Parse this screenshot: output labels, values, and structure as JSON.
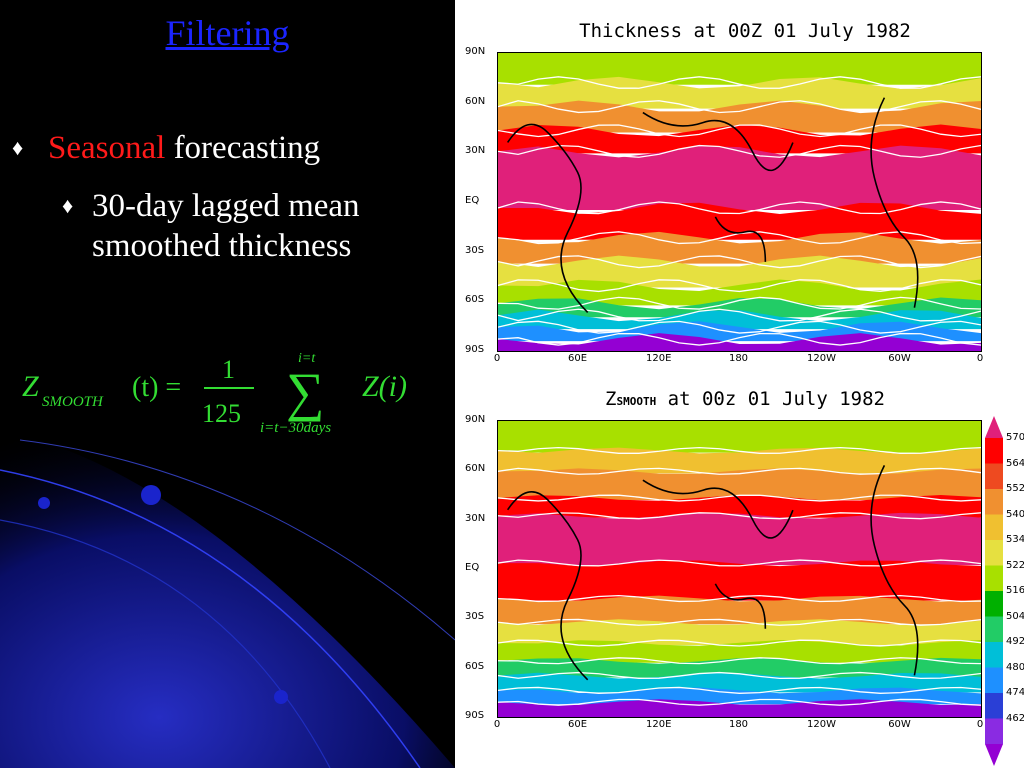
{
  "slide": {
    "title": "Filtering",
    "bullets": {
      "b1": {
        "highlight": "Seasonal",
        "rest": "forecasting"
      },
      "b2": {
        "line1": "30-day lagged mean",
        "line2": "smoothed thickness"
      }
    },
    "formula": {
      "lhs_symbol": "Z",
      "lhs_subscript": "SMOOTH",
      "lhs_arg": "(t) =",
      "numerator": "1",
      "denominator": "125",
      "sum_upper": "i=t",
      "sum_lower": "i=t−30days",
      "sum_symbol": "∑",
      "rhs": "Z(i)"
    }
  },
  "colors": {
    "title": "#1b25ff",
    "highlight": "#ff1a1a",
    "formula": "#33dd33",
    "bands": [
      "#9400d3",
      "#8a2be2",
      "#2a3fd6",
      "#1e90ff",
      "#00bfd8",
      "#22cc66",
      "#00b000",
      "#a8e000",
      "#e6e040",
      "#f0c030",
      "#f09030",
      "#ee4a20",
      "#ff0000",
      "#e0207a"
    ]
  },
  "maps": {
    "top": {
      "title": "Thickness at 00Z 01 July 1982",
      "y_ticks": [
        "90N",
        "60N",
        "30N",
        "EQ",
        "30S",
        "60S",
        "90S"
      ],
      "x_ticks": [
        "0",
        "60E",
        "120E",
        "180",
        "120W",
        "60W",
        "0"
      ]
    },
    "bottom": {
      "title_prefix": "Z",
      "title_sub": "SMOOTH",
      "title_suffix": "at 00z 01 July 1982",
      "y_ticks": [
        "90N",
        "60N",
        "30N",
        "EQ",
        "30S",
        "60S",
        "90S"
      ],
      "x_ticks": [
        "0",
        "60E",
        "120E",
        "180",
        "120W",
        "60W",
        "0"
      ]
    }
  },
  "colorbar": {
    "labels": [
      "570",
      "564",
      "552",
      "540",
      "534",
      "522",
      "516",
      "504",
      "492",
      "480",
      "474",
      "462"
    ]
  }
}
